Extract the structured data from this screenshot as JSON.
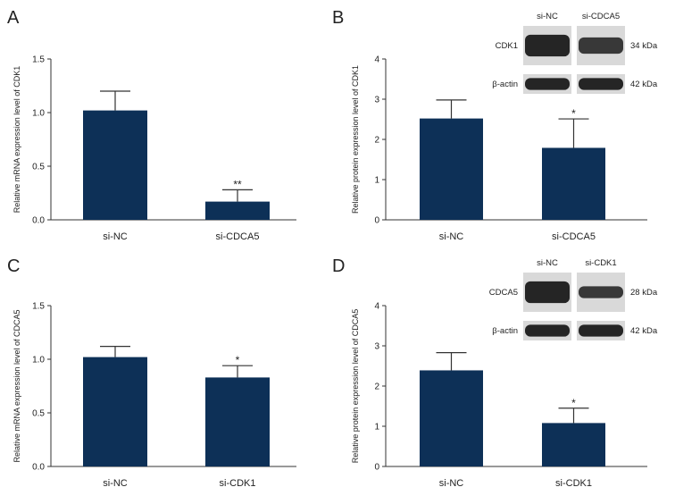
{
  "chart_data": [
    {
      "panel": "A",
      "type": "bar",
      "categories": [
        "si-NC",
        "si-CDCA5"
      ],
      "values": [
        1.02,
        0.17
      ],
      "errors": [
        0.18,
        0.11
      ],
      "significance": [
        "",
        "**"
      ],
      "ylabel": "Relative mRNA expression level of CDK1",
      "ylim": [
        0,
        1.5
      ],
      "yticks": [
        "0.0",
        "0.5",
        "1.0",
        "1.5"
      ],
      "bar_color": "#0d3057"
    },
    {
      "panel": "B",
      "type": "bar",
      "categories": [
        "si-NC",
        "si-CDCA5"
      ],
      "values": [
        2.52,
        1.79
      ],
      "errors": [
        0.46,
        0.72
      ],
      "significance": [
        "",
        "*"
      ],
      "ylabel": "Relative protein expression level of CDK1",
      "ylim": [
        0,
        4
      ],
      "yticks": [
        "0",
        "1",
        "2",
        "3",
        "4"
      ],
      "bar_color": "#0d3057",
      "blot": {
        "lanes": [
          "si-NC",
          "si-CDCA5"
        ],
        "rows": [
          {
            "protein": "CDK1",
            "size": "34 kDa"
          },
          {
            "protein": "β-actin",
            "size": "42 kDa"
          }
        ]
      }
    },
    {
      "panel": "C",
      "type": "bar",
      "categories": [
        "si-NC",
        "si-CDK1"
      ],
      "values": [
        1.02,
        0.83
      ],
      "errors": [
        0.1,
        0.11
      ],
      "significance": [
        "",
        "*"
      ],
      "ylabel": "Relative mRNA expression level of CDCA5",
      "ylim": [
        0,
        1.5
      ],
      "yticks": [
        "0.0",
        "0.5",
        "1.0",
        "1.5"
      ],
      "bar_color": "#0d3057"
    },
    {
      "panel": "D",
      "type": "bar",
      "categories": [
        "si-NC",
        "si-CDK1"
      ],
      "values": [
        2.39,
        1.08
      ],
      "errors": [
        0.44,
        0.37
      ],
      "significance": [
        "",
        "*"
      ],
      "ylabel": "Relative protein expression level of CDCA5",
      "ylim": [
        0,
        4
      ],
      "yticks": [
        "0",
        "1",
        "2",
        "3",
        "4"
      ],
      "bar_color": "#0d3057",
      "blot": {
        "lanes": [
          "si-NC",
          "si-CDK1"
        ],
        "rows": [
          {
            "protein": "CDCA5",
            "size": "28 kDa"
          },
          {
            "protein": "β-actin",
            "size": "42 kDa"
          }
        ]
      }
    }
  ]
}
